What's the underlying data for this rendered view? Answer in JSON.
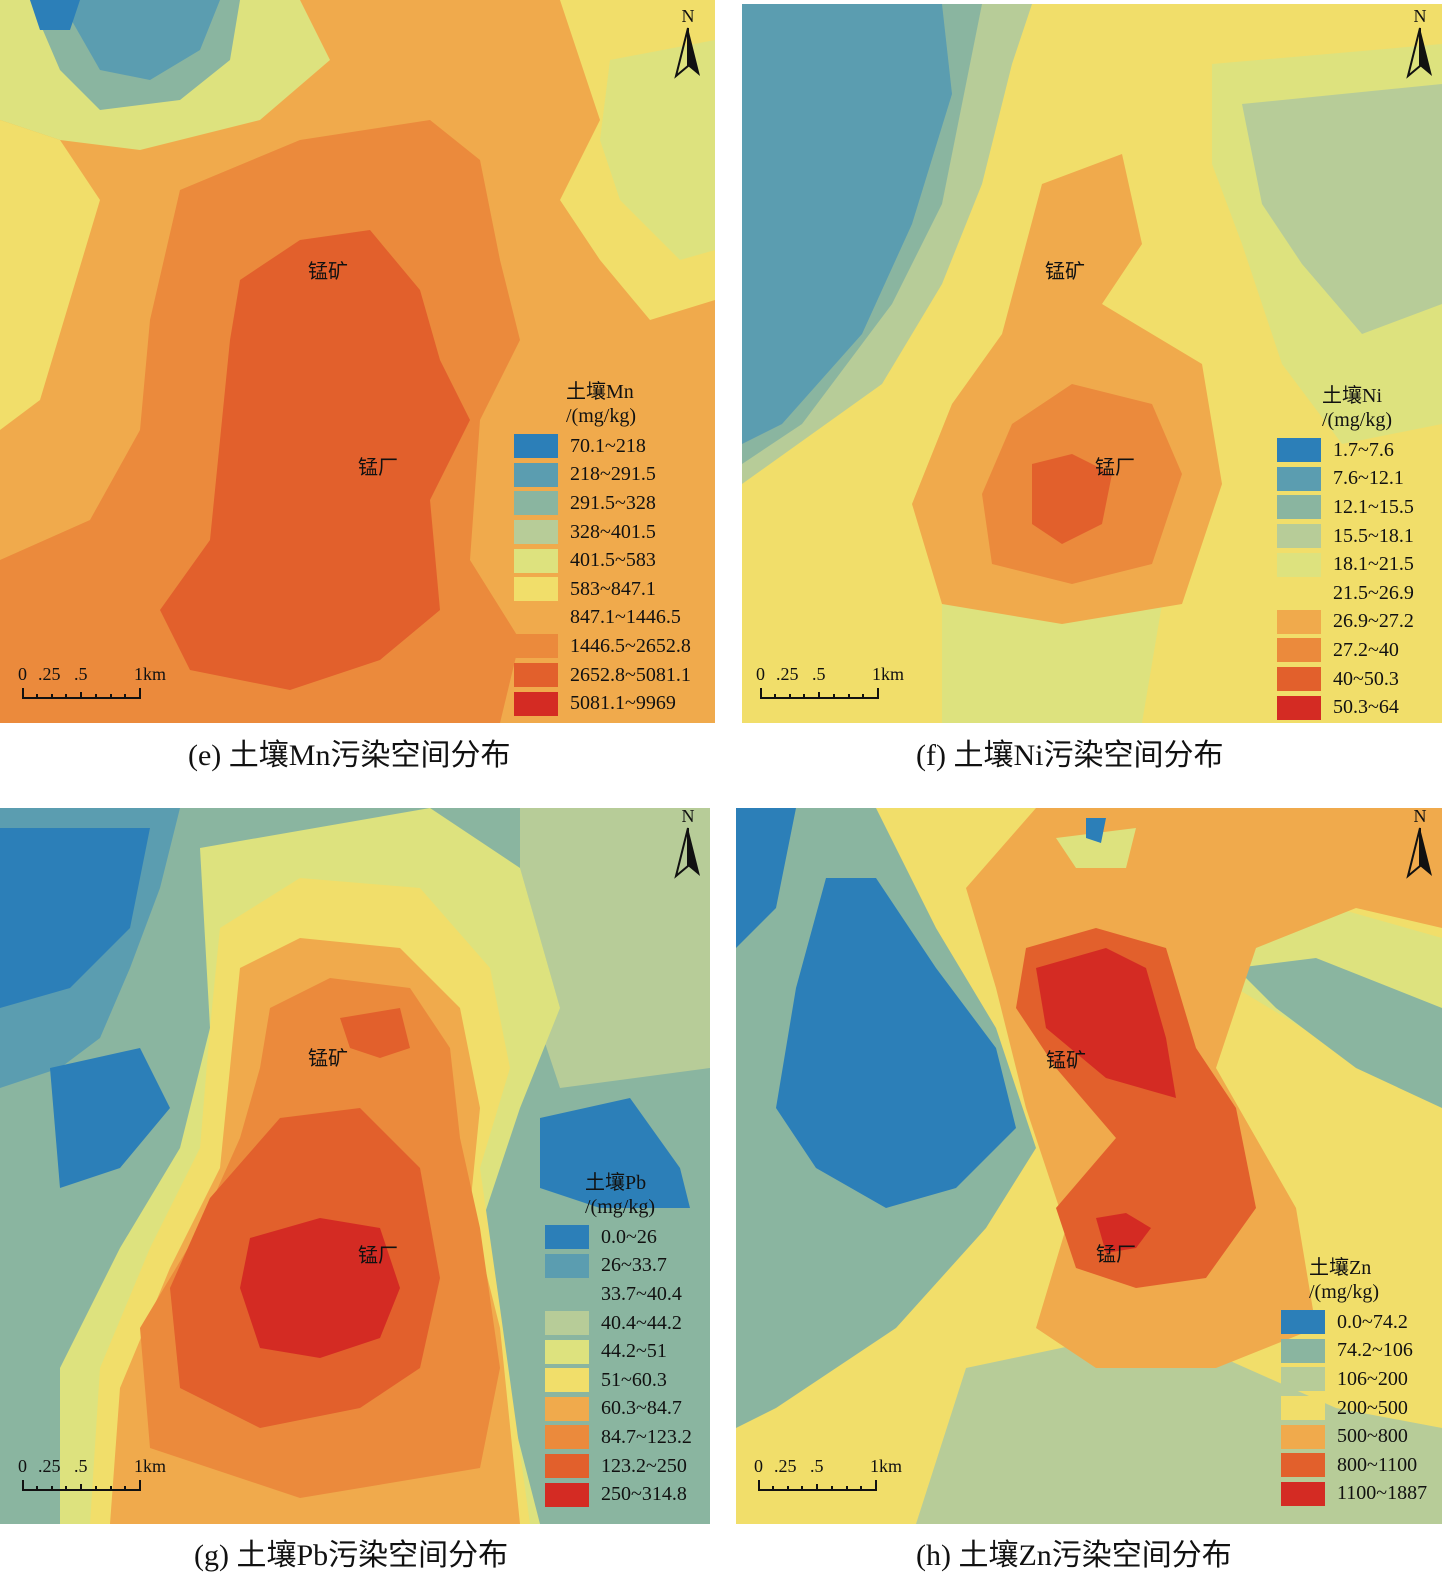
{
  "colors": {
    "c1": "#2c7fb8",
    "c2": "#5b9db0",
    "c3": "#8ab5a0",
    "c4": "#b7cc98",
    "c5": "#dde27e",
    "c6": "#f1de6a",
    "c7": "#f0aa4c",
    "c8": "#eb8a3c",
    "c9": "#e2602c",
    "c10": "#d42b23"
  },
  "panels": [
    {
      "id": "mn",
      "caption": "(e) 土壤Mn污染空间分布",
      "north": "N",
      "mine_label": "锰矿",
      "factory_label": "锰厂",
      "legend_title": [
        "土壤Mn",
        "/(mg/kg)"
      ],
      "legend": [
        "70.1~218",
        "218~291.5",
        "291.5~328",
        "328~401.5",
        "401.5~583",
        "583~847.1",
        "847.1~1446.5",
        "1446.5~2652.8",
        "2652.8~5081.1",
        "5081.1~9969"
      ],
      "scale_ticks": [
        "0",
        ".25",
        ".5",
        "1km"
      ]
    },
    {
      "id": "ni",
      "caption": "(f) 土壤Ni污染空间分布",
      "north": "N",
      "mine_label": "锰矿",
      "factory_label": "锰厂",
      "legend_title": [
        "土壤Ni",
        "/(mg/kg)"
      ],
      "legend": [
        "1.7~7.6",
        "7.6~12.1",
        "12.1~15.5",
        "15.5~18.1",
        "18.1~21.5",
        "21.5~26.9",
        "26.9~27.2",
        "27.2~40",
        "40~50.3",
        "50.3~64"
      ],
      "scale_ticks": [
        "0",
        ".25",
        ".5",
        "1km"
      ]
    },
    {
      "id": "pb",
      "caption": "(g) 土壤Pb污染空间分布",
      "north": "N",
      "mine_label": "锰矿",
      "factory_label": "锰厂",
      "legend_title": [
        "土壤Pb",
        "/(mg/kg)"
      ],
      "legend": [
        "0.0~26",
        "26~33.7",
        "33.7~40.4",
        "40.4~44.2",
        "44.2~51",
        "51~60.3",
        "60.3~84.7",
        "84.7~123.2",
        "123.2~250",
        "250~314.8"
      ],
      "scale_ticks": [
        "0",
        ".25",
        ".5",
        "1km"
      ]
    },
    {
      "id": "zn",
      "caption": "(h) 土壤Zn污染空间分布",
      "north": "N",
      "mine_label": "锰矿",
      "factory_label": "锰厂",
      "legend_title": [
        "土壤Zn",
        "/(mg/kg)"
      ],
      "legend": [
        "0.0~74.2",
        "74.2~106",
        "106~200",
        "200~500",
        "500~800",
        "800~1100",
        "1100~1887"
      ],
      "scale_ticks": [
        "0",
        ".25",
        ".5",
        "1km"
      ]
    }
  ]
}
